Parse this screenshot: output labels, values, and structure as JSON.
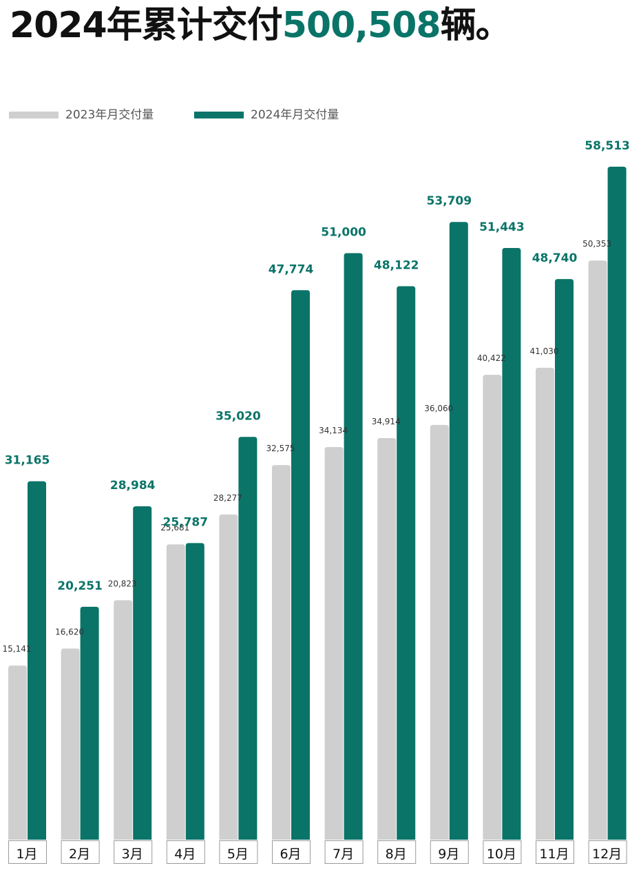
{
  "title": {
    "prefix": "2024年累计交付",
    "highlight": "500,508",
    "suffix": "辆。"
  },
  "colors": {
    "series_2023": "#cfcfcf",
    "series_2024": "#0a7468",
    "label_2023": "#333333",
    "label_2024": "#0a7468",
    "title_text": "#111111"
  },
  "chart_data": {
    "type": "bar",
    "categories": [
      "1月",
      "2月",
      "3月",
      "4月",
      "5月",
      "6月",
      "7月",
      "8月",
      "9月",
      "10月",
      "11月",
      "12月"
    ],
    "series": [
      {
        "name": "2023年月交付量",
        "values": [
          15141,
          16620,
          20823,
          25681,
          28277,
          32575,
          34134,
          34914,
          36060,
          40422,
          41030,
          50353
        ],
        "labels": [
          "15,141",
          "16,620",
          "20,823",
          "25,681",
          "28,277",
          "32,575",
          "34,134",
          "34,914",
          "36,060",
          "40,422",
          "41,030",
          "50,353"
        ]
      },
      {
        "name": "2024年月交付量",
        "values": [
          31165,
          20251,
          28984,
          25787,
          35020,
          47774,
          51000,
          48122,
          53709,
          51443,
          48740,
          58513
        ],
        "labels": [
          "31,165",
          "20,251",
          "28,984",
          "25,787",
          "35,020",
          "47,774",
          "51,000",
          "48,122",
          "53,709",
          "51,443",
          "48,740",
          "58,513"
        ]
      }
    ],
    "ylim": [
      0,
      58513
    ],
    "grid": false,
    "legend": "top-left"
  }
}
